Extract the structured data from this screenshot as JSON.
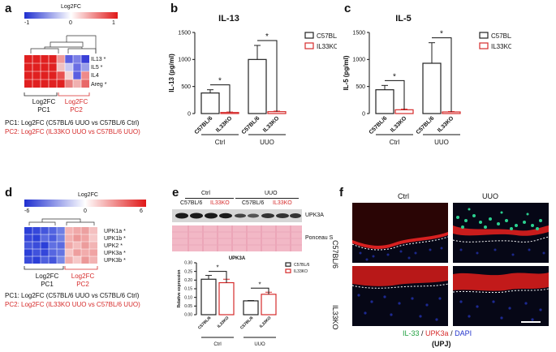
{
  "panels": {
    "a": {
      "label": "a",
      "scale_title": "Log2FC",
      "scale_ticks": [
        "-1",
        "0",
        "1"
      ],
      "genes": [
        "IL13 *",
        "IL5 *",
        "IL4",
        "Areg *"
      ],
      "group1": {
        "name": "Log2FC",
        "sub": "PC1"
      },
      "group2": {
        "name": "Log2FC",
        "sub": "PC2"
      },
      "legend1": "PC1: Log2FC (C57BL/6 UUO vs C57BL/6 Ctrl)",
      "legend2": "PC2: Log2FC (IL33KO UUO vs C57BL/6 UUO)"
    },
    "b": {
      "label": "b"
    },
    "c": {
      "label": "c"
    },
    "d": {
      "label": "d",
      "scale_title": "Log2FC",
      "scale_ticks": [
        "-6",
        "0",
        "6"
      ],
      "genes": [
        "UPK1a *",
        "UPK1b *",
        "UPK2 *",
        "UPK3a *",
        "UPK3b *"
      ],
      "group1": {
        "name": "Log2FC",
        "sub": "PC1"
      },
      "group2": {
        "name": "Log2FC",
        "sub": "PC2"
      },
      "legend1": "PC1: Log2FC (C57BL/6 UUO vs C57BL/6 Ctrl)",
      "legend2": "PC2: Log2FC (IL33KO UUO vs C57BL/6 UUO)"
    },
    "e": {
      "label": "e",
      "top_groups": [
        "Ctrl",
        "UUO"
      ],
      "top_strains": [
        "C57BL/6",
        "IL33KO",
        "C57BL/6",
        "IL33KO"
      ],
      "band1": "UPK3A",
      "band2": "Ponceau S"
    },
    "f": {
      "label": "f",
      "col_labels": [
        "Ctrl",
        "UUO"
      ],
      "row_labels": [
        "C57BL/6",
        "IL33KO"
      ],
      "caption_parts": [
        "IL-33",
        " / ",
        "UPK3a",
        " / ",
        "DAPI"
      ],
      "caption_sub": "(UPJ)"
    }
  },
  "chart_data": [
    {
      "type": "bar",
      "title": "IL-13",
      "ylabel": "IL-13 (pg/ml)",
      "ylim": [
        0,
        1500
      ],
      "yticks": [
        "0",
        "500",
        "1000",
        "1500"
      ],
      "categories": [
        "C57BL/6",
        "IL33KO",
        "C57BL/6",
        "IL33KO"
      ],
      "groups": [
        "Ctrl",
        "UUO"
      ],
      "values": [
        380,
        20,
        1000,
        35
      ],
      "errors": [
        60,
        8,
        260,
        10
      ],
      "legend": [
        "C57BL/6",
        "IL33KO"
      ],
      "significance": "*"
    },
    {
      "type": "bar",
      "title": "IL-5",
      "ylabel": "IL-5 (pg/ml)",
      "ylim": [
        0,
        1500
      ],
      "yticks": [
        "0",
        "500",
        "1000",
        "1500"
      ],
      "categories": [
        "C57BL/6",
        "IL33KO",
        "C57BL/6",
        "IL33KO"
      ],
      "groups": [
        "Ctrl",
        "UUO"
      ],
      "values": [
        440,
        70,
        930,
        30
      ],
      "errors": [
        80,
        12,
        380,
        8
      ],
      "legend": [
        "C57BL/6",
        "IL33KO"
      ],
      "significance": "*"
    },
    {
      "type": "bar",
      "title": "UPK3A",
      "ylabel": "Relative expression",
      "ylim": [
        0,
        0.3
      ],
      "yticks": [
        "0.00",
        "0.05",
        "0.10",
        "0.15",
        "0.20",
        "0.25",
        "0.30"
      ],
      "categories": [
        "C57BL/6",
        "IL33KO",
        "C57BL/6",
        "IL33KO"
      ],
      "groups": [
        "Ctrl",
        "UUO"
      ],
      "values": [
        0.205,
        0.185,
        0.08,
        0.118
      ],
      "errors": [
        0.022,
        0.02,
        0.002,
        0.012
      ],
      "legend": [
        "C57BL/6",
        "IL33KO"
      ],
      "significance": "*"
    }
  ],
  "colors": {
    "black": "#222222",
    "red": "#d62b2b",
    "blue": "#2233cc"
  }
}
